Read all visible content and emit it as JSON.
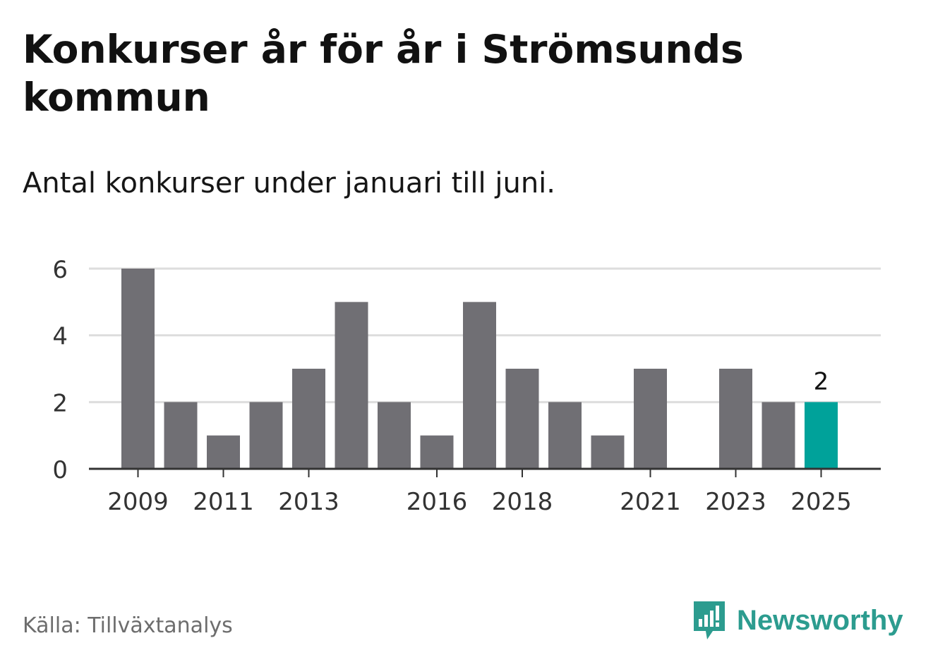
{
  "header": {
    "title": "Konkurser år för år i Strömsunds kommun",
    "subtitle": "Antal konkurser under januari till juni."
  },
  "footer": {
    "source": "Källa: Tillväxtanalys",
    "brand": "Newsworthy",
    "brand_icon": "bar-chart-speech-bubble-icon"
  },
  "colors": {
    "bar": "#706f74",
    "highlight": "#00a29a",
    "grid": "#dddddd",
    "axis": "#333333",
    "brand": "#2c9c8f"
  },
  "chart_data": {
    "type": "bar",
    "categories": [
      "2009",
      "2010",
      "2011",
      "2012",
      "2013",
      "2014",
      "2015",
      "2016",
      "2017",
      "2018",
      "2019",
      "2020",
      "2021",
      "2022",
      "2023",
      "2024",
      "2025"
    ],
    "values": [
      6,
      2,
      1,
      2,
      3,
      5,
      2,
      1,
      5,
      3,
      2,
      1,
      3,
      0,
      3,
      2,
      2
    ],
    "x_tick_labels": [
      "2009",
      "2011",
      "2013",
      "2016",
      "2018",
      "2021",
      "2023",
      "2025"
    ],
    "y_ticks": [
      0,
      2,
      4,
      6
    ],
    "ylim": [
      0,
      6
    ],
    "highlight_category": "2025",
    "highlight_label": "2",
    "grid": true,
    "legend": "none"
  }
}
